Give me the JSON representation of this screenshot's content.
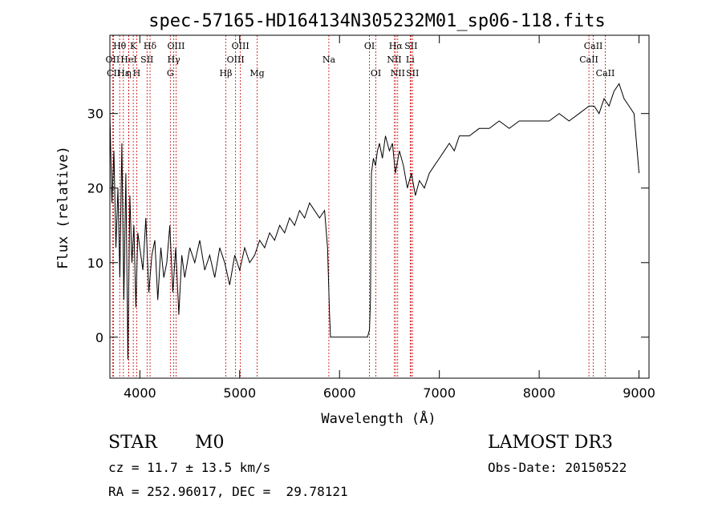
{
  "chart_data": {
    "type": "line",
    "title": "spec-57165-HD164134N305232M01_sp06-118.fits",
    "xlabel": "Wavelength (Å)",
    "ylabel": "Flux (relative)",
    "xlim": [
      3700,
      9100
    ],
    "ylim": [
      -5.5,
      40.5
    ],
    "xticks": [
      4000,
      5000,
      6000,
      7000,
      8000,
      9000
    ],
    "yticks": [
      0,
      10,
      20,
      30
    ],
    "grid": false,
    "line_color": "#000000",
    "marker_color": "#cc0000",
    "series": [
      {
        "x": [
          3700,
          3720,
          3740,
          3760,
          3780,
          3800,
          3820,
          3840,
          3860,
          3880,
          3900,
          3920,
          3940,
          3960,
          3980,
          4000,
          4030,
          4060,
          4090,
          4120,
          4150,
          4180,
          4210,
          4240,
          4270,
          4300,
          4330,
          4360,
          4390,
          4420,
          4450,
          4500,
          4550,
          4600,
          4650,
          4700,
          4750,
          4800,
          4850,
          4900,
          4950,
          5000,
          5050,
          5100,
          5150,
          5200,
          5250,
          5300,
          5350,
          5400,
          5450,
          5500,
          5550,
          5600,
          5650,
          5700,
          5750,
          5800,
          5850,
          5880,
          5900,
          5910,
          5920,
          6000,
          6100,
          6200,
          6280,
          6300,
          6310,
          6320,
          6340,
          6360,
          6380,
          6400,
          6430,
          6460,
          6500,
          6530,
          6560,
          6600,
          6640,
          6680,
          6720,
          6760,
          6800,
          6850,
          6900,
          6950,
          7000,
          7050,
          7100,
          7150,
          7200,
          7300,
          7400,
          7500,
          7600,
          7700,
          7800,
          7900,
          8000,
          8100,
          8200,
          8300,
          8400,
          8500,
          8550,
          8600,
          8650,
          8700,
          8750,
          8800,
          8850,
          8900,
          8950,
          9000
        ],
        "y": [
          30,
          18,
          25,
          12,
          20,
          8,
          26,
          5,
          22,
          -3,
          19,
          10,
          15,
          4,
          14,
          12,
          9,
          16,
          6,
          11,
          13,
          5,
          12,
          8,
          10,
          15,
          6,
          12,
          3,
          11,
          8,
          12,
          10,
          13,
          9,
          11,
          8,
          12,
          10,
          7,
          11,
          9,
          12,
          10,
          11,
          13,
          12,
          14,
          13,
          15,
          14,
          16,
          15,
          17,
          16,
          18,
          17,
          16,
          17,
          12,
          3,
          0,
          0,
          0,
          0,
          0,
          0,
          1,
          5,
          22,
          24,
          23,
          25,
          26,
          24,
          27,
          25,
          26,
          22,
          25,
          23,
          20,
          22,
          19,
          21,
          20,
          22,
          23,
          24,
          25,
          26,
          25,
          27,
          27,
          28,
          28,
          29,
          28,
          29,
          29,
          29,
          29,
          30,
          29,
          30,
          31,
          31,
          30,
          32,
          31,
          33,
          34,
          32,
          31,
          30,
          22
        ]
      }
    ],
    "lines": [
      {
        "label": "Hθ",
        "wavelength": 3798,
        "row": 1
      },
      {
        "label": "OII",
        "wavelength": 3727,
        "row": 2
      },
      {
        "label": "CII",
        "wavelength": 3737,
        "row": 3
      },
      {
        "label": "Hε",
        "wavelength": 3835,
        "row": 3
      },
      {
        "label": "K",
        "wavelength": 3934,
        "row": 1
      },
      {
        "label": "HeI",
        "wavelength": 3889,
        "row": 2
      },
      {
        "label": "η",
        "wavelength": 3889,
        "row": 3
      },
      {
        "label": "H",
        "wavelength": 3969,
        "row": 3
      },
      {
        "label": "SII",
        "wavelength": 4072,
        "row": 2
      },
      {
        "label": "Hδ",
        "wavelength": 4102,
        "row": 1
      },
      {
        "label": "OIII",
        "wavelength": 4363,
        "row": 1
      },
      {
        "label": "Hγ",
        "wavelength": 4340,
        "row": 2
      },
      {
        "label": "G",
        "wavelength": 4305,
        "row": 3
      },
      {
        "label": "Hβ",
        "wavelength": 4861,
        "row": 3
      },
      {
        "label": "OIII",
        "wavelength": 4959,
        "row": 2
      },
      {
        "label": "OIII",
        "wavelength": 5007,
        "row": 1
      },
      {
        "label": "Mg",
        "wavelength": 5175,
        "row": 3
      },
      {
        "label": "Na",
        "wavelength": 5893,
        "row": 2
      },
      {
        "label": "OI",
        "wavelength": 6300,
        "row": 1
      },
      {
        "label": "OI",
        "wavelength": 6364,
        "row": 3
      },
      {
        "label": "Hα",
        "wavelength": 6563,
        "row": 1
      },
      {
        "label": "NII",
        "wavelength": 6548,
        "row": 2
      },
      {
        "label": "NII",
        "wavelength": 6583,
        "row": 3
      },
      {
        "label": "SII",
        "wavelength": 6716,
        "row": 1
      },
      {
        "label": "Li",
        "wavelength": 6708,
        "row": 2
      },
      {
        "label": "SII",
        "wavelength": 6731,
        "row": 3
      },
      {
        "label": "CaII",
        "wavelength": 8542,
        "row": 1
      },
      {
        "label": "CaII",
        "wavelength": 8498,
        "row": 2
      },
      {
        "label": "CaII",
        "wavelength": 8662,
        "row": 3
      }
    ]
  },
  "info": {
    "class": "STAR",
    "subclass": "M0",
    "survey": "LAMOST DR3",
    "cz": "cz = 11.7 ± 13.5 km/s",
    "obs_date": "Obs-Date: 20150522",
    "coords": "RA = 252.96017, DEC =  29.78121"
  }
}
